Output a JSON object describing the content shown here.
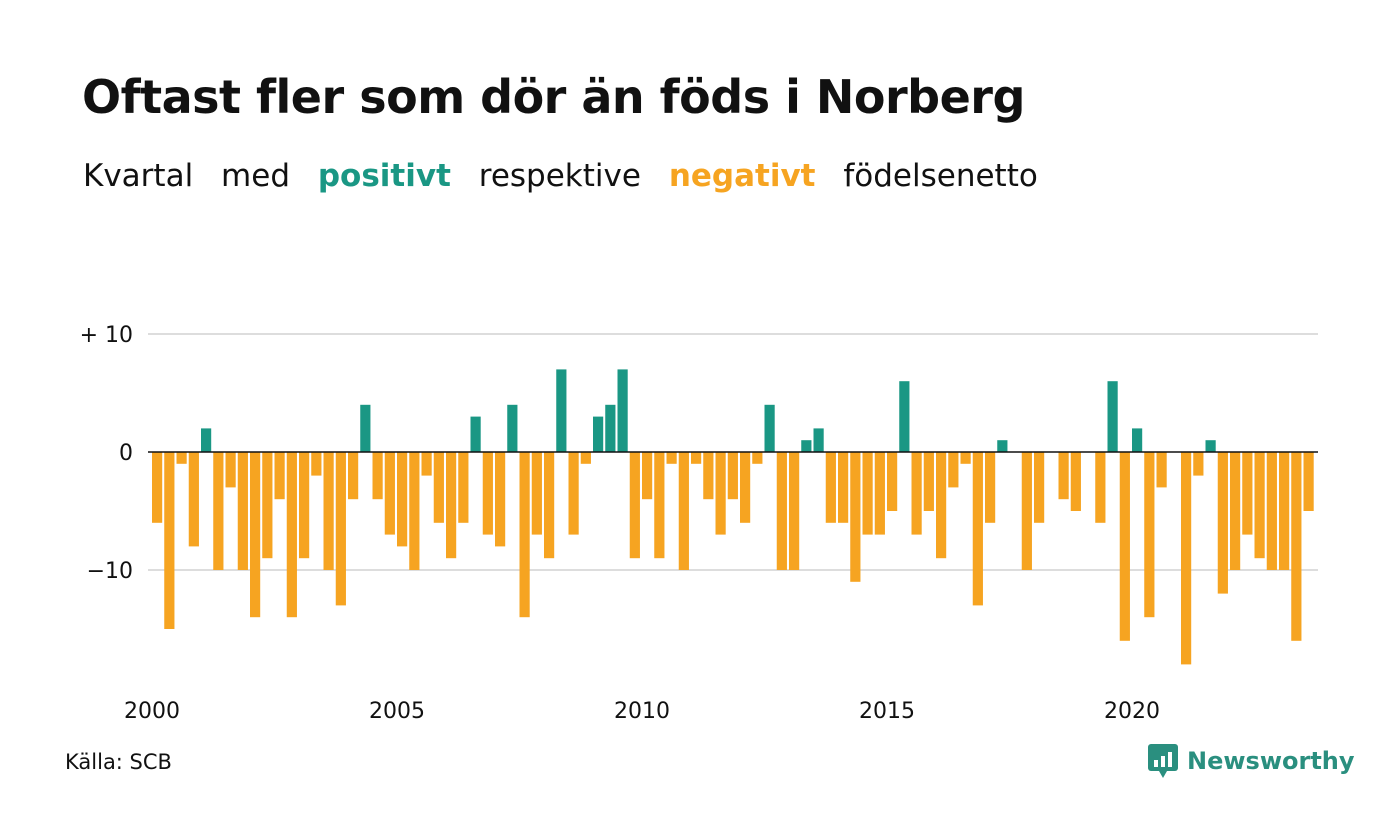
{
  "title": "Oftast fler som dör än föds i Norberg",
  "subtitle": {
    "part1": "Kvartal",
    "part2": "med",
    "positive": "positivt",
    "part3": "respektive",
    "negative": "negativt",
    "part4": "födelsenetto"
  },
  "source": "Källa: SCB",
  "brand": "Newsworthy",
  "colors": {
    "positive": "#1a9784",
    "negative": "#f6a421",
    "grid": "#dddddd",
    "axis": "#111111",
    "brand": "#2a8f7f"
  },
  "chart_data": {
    "type": "bar",
    "x_start": "2000 Q1",
    "ylim": [
      -19,
      11
    ],
    "yticks": [
      {
        "value": 10,
        "label": "+ 10"
      },
      {
        "value": 0,
        "label": "0"
      },
      {
        "value": -10,
        "label": "−10"
      }
    ],
    "xticks": [
      {
        "label": "2000"
      },
      {
        "label": "2005"
      },
      {
        "label": "2010"
      },
      {
        "label": "2015"
      },
      {
        "label": "2020"
      }
    ],
    "grid": "horizontal",
    "values": [
      -6,
      -15,
      -1,
      -8,
      2,
      -10,
      -3,
      -10,
      -14,
      -9,
      -4,
      -14,
      -9,
      -2,
      -10,
      -13,
      -4,
      4,
      -4,
      -7,
      -8,
      -10,
      -2,
      -6,
      -9,
      -6,
      3,
      -7,
      -8,
      4,
      -14,
      -7,
      -9,
      7,
      -7,
      -1,
      3,
      4,
      7,
      -9,
      -4,
      -9,
      -1,
      -10,
      -1,
      -4,
      -7,
      -4,
      -6,
      -1,
      4,
      -10,
      -10,
      1,
      2,
      -6,
      -6,
      -11,
      -7,
      -7,
      -5,
      6,
      -7,
      -5,
      -9,
      -3,
      -1,
      -13,
      -6,
      1,
      0,
      -10,
      -6,
      0,
      -4,
      -5,
      0,
      -6,
      6,
      -16,
      2,
      -14,
      -3,
      0,
      -18,
      -2,
      1,
      -12,
      -10,
      -7,
      -9,
      -10,
      -10,
      -16,
      -5
    ]
  }
}
